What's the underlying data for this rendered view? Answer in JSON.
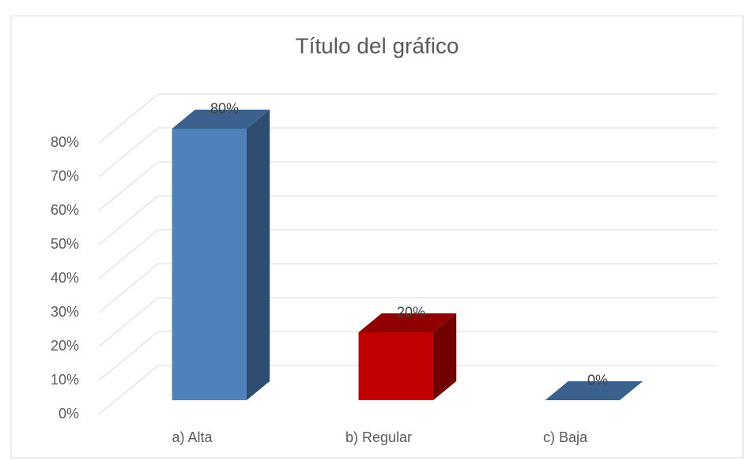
{
  "chart_data": {
    "type": "bar3d",
    "title": "Título del gráfico",
    "categories": [
      "a) Alta",
      "b) Regular",
      "c) Baja"
    ],
    "values": [
      80,
      20,
      0
    ],
    "value_labels": [
      "80%",
      "20%",
      "0%"
    ],
    "colors": [
      "#4f81bd",
      "#c00000",
      "#4f81bd"
    ],
    "ylim": [
      0,
      80
    ],
    "yticks": [
      {
        "value": 0,
        "label": "0%"
      },
      {
        "value": 10,
        "label": "10%"
      },
      {
        "value": 20,
        "label": "20%"
      },
      {
        "value": 30,
        "label": "30%"
      },
      {
        "value": 40,
        "label": "40%"
      },
      {
        "value": 50,
        "label": "50%"
      },
      {
        "value": 60,
        "label": "60%"
      },
      {
        "value": 70,
        "label": "70%"
      },
      {
        "value": 80,
        "label": "80%"
      }
    ],
    "grid": true
  }
}
